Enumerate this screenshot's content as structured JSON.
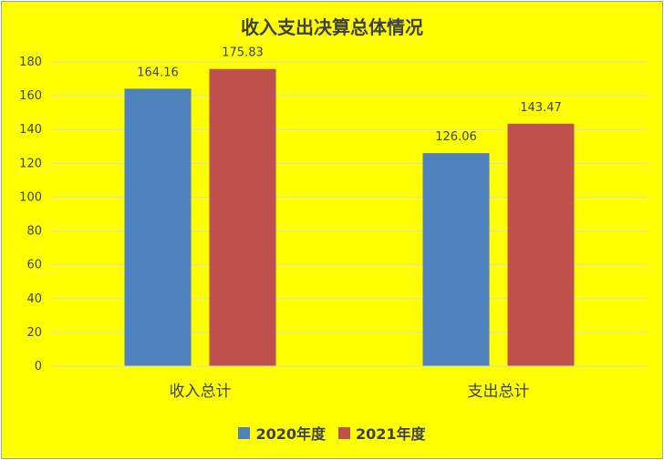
{
  "chart_data": {
    "type": "bar",
    "title": "收入支出决算总体情况",
    "categories": [
      "收入总计",
      "支出总计"
    ],
    "series": [
      {
        "name": "2020年度",
        "color": "#4f81bd",
        "values": [
          164.16,
          126.06
        ]
      },
      {
        "name": "2021年度",
        "color": "#c0504d",
        "values": [
          175.83,
          143.47
        ]
      }
    ],
    "data_labels": [
      [
        "164.16",
        "126.06"
      ],
      [
        "175.83",
        "143.47"
      ]
    ],
    "ylim": [
      0,
      180
    ],
    "yticks": [
      0,
      20,
      40,
      60,
      80,
      100,
      120,
      140,
      160,
      180
    ],
    "xlabel": "",
    "ylabel": "",
    "grid": true,
    "legend_position": "bottom",
    "background_color": "#ffff00"
  }
}
